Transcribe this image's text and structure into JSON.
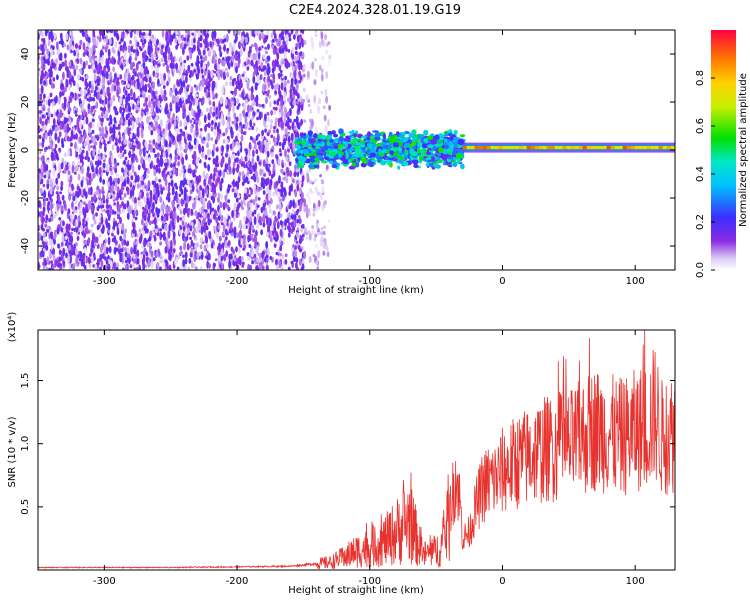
{
  "figure_title": "C2E4.2024.328.01.19.G19",
  "colors": {
    "snr_line": "#e8322d",
    "frame": "#000000",
    "background": "#ffffff"
  },
  "chart_data": [
    {
      "type": "heatmap",
      "title": "C2E4.2024.328.01.19.G19",
      "xlabel": "Height of straight line (km)",
      "ylabel": "Frequency (Hz)",
      "xlim": [
        -350,
        130
      ],
      "ylim": [
        -50,
        50
      ],
      "x_ticks": [
        -300,
        -200,
        -100,
        0,
        100
      ],
      "y_ticks": [
        -40,
        -20,
        0,
        20,
        40
      ],
      "colorbar": {
        "label": "Normalized spectral amplitude",
        "range": [
          0,
          1
        ],
        "ticks": [
          0.0,
          0.2,
          0.4,
          0.6,
          0.8
        ],
        "tick_labels": [
          "0.0",
          "0.2",
          "0.4",
          "0.6",
          "0.8"
        ],
        "colormap": "rainbow (white-violet-blue-cyan-green-yellow-orange-red)"
      },
      "regions": [
        {
          "description": "broadband noise",
          "x_range": [
            -350,
            -150
          ],
          "freq_range": [
            -50,
            50
          ],
          "amplitude": 0.1
        },
        {
          "description": "fading noise",
          "x_range": [
            -150,
            -130
          ],
          "freq_range": [
            -50,
            50
          ],
          "amplitude": 0.05
        },
        {
          "description": "tracked signal, broadened",
          "x_range": [
            -155,
            -30
          ],
          "freq_range": [
            -8,
            8
          ],
          "amplitude": 0.3
        },
        {
          "description": "tracked signal, narrow line",
          "x_range": [
            -30,
            130
          ],
          "freq_range": [
            -2,
            3
          ],
          "amplitude": 0.85
        }
      ]
    },
    {
      "type": "line",
      "xlabel": "Height of straight line (km)",
      "ylabel": "SNR (10 * v/v)",
      "y_multiplier": "(x10⁴)",
      "xlim": [
        -350,
        130
      ],
      "ylim": [
        0,
        1.9
      ],
      "x_ticks": [
        -300,
        -200,
        -100,
        0,
        100
      ],
      "y_ticks": [
        0.5,
        1.0,
        1.5
      ],
      "y_tick_labels": [
        "0.5",
        "1.0",
        "1.5"
      ],
      "series": [
        {
          "x": [
            -350,
            -300,
            -250,
            -200,
            -160,
            -150,
            -140,
            -130,
            -120,
            -110,
            -100,
            -90,
            -80,
            -70,
            -60,
            -50,
            -45,
            -40,
            -35,
            -32,
            -30,
            -25,
            -20,
            -15,
            -10,
            -5,
            0,
            10,
            20,
            30,
            40,
            50,
            60,
            70,
            80,
            90,
            100,
            110,
            115,
            120,
            130
          ],
          "y": [
            0.02,
            0.02,
            0.02,
            0.025,
            0.03,
            0.04,
            0.05,
            0.06,
            0.1,
            0.15,
            0.18,
            0.22,
            0.3,
            0.4,
            0.12,
            0.15,
            0.2,
            0.45,
            0.75,
            0.55,
            0.25,
            0.3,
            0.5,
            0.65,
            0.7,
            0.72,
            0.78,
            0.85,
            0.9,
            0.95,
            0.97,
            0.98,
            1.05,
            1.12,
            1.08,
            1.05,
            1.1,
            1.15,
            1.25,
            1.05,
            1.1
          ]
        }
      ]
    }
  ]
}
